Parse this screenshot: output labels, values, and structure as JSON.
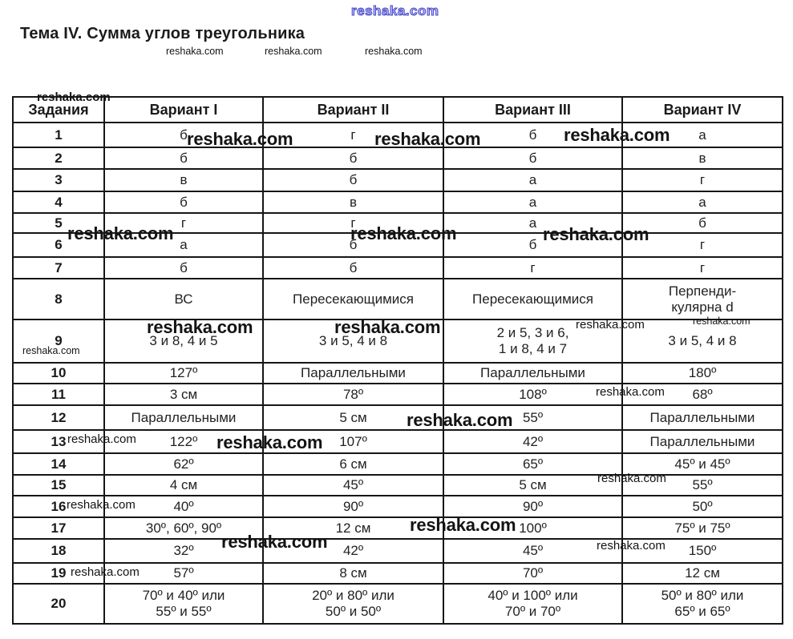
{
  "page": {
    "title": "Тема IV. Сумма углов треугольника",
    "watermark": "reshaka.com"
  },
  "table": {
    "headers": [
      "Задания",
      "Вариант I",
      "Вариант II",
      "Вариант III",
      "Вариант IV"
    ],
    "rows": [
      {
        "task": "1",
        "v1": "б",
        "v2": "г",
        "v3": "б",
        "v4": "а"
      },
      {
        "task": "2",
        "v1": "б",
        "v2": "б",
        "v3": "б",
        "v4": "в"
      },
      {
        "task": "3",
        "v1": "в",
        "v2": "б",
        "v3": "а",
        "v4": "г"
      },
      {
        "task": "4",
        "v1": "б",
        "v2": "в",
        "v3": "а",
        "v4": "а"
      },
      {
        "task": "5",
        "v1": "г",
        "v2": "г",
        "v3": "а",
        "v4": "б"
      },
      {
        "task": "6",
        "v1": "а",
        "v2": "б",
        "v3": "б",
        "v4": "г"
      },
      {
        "task": "7",
        "v1": "б",
        "v2": "б",
        "v3": "г",
        "v4": "г"
      },
      {
        "task": "8",
        "v1": "ВС",
        "v2": "Пересекающимися",
        "v3": "Пересекающимися",
        "v4": "Перпенди-\nкулярна d"
      },
      {
        "task": "9",
        "v1": "3 и 8, 4 и 5",
        "v2": "3 и 5, 4 и 8",
        "v3": "2 и 5, 3 и 6,\n1 и 8, 4 и 7",
        "v4": "3 и 5, 4 и 8"
      },
      {
        "task": "10",
        "v1": "127º",
        "v2": "Параллельными",
        "v3": "Параллельными",
        "v4": "180º"
      },
      {
        "task": "11",
        "v1": "3 см",
        "v2": "78º",
        "v3": "108º",
        "v4": "68º"
      },
      {
        "task": "12",
        "v1": "Параллельными",
        "v2": "5 см",
        "v3": "55º",
        "v4": "Параллельными"
      },
      {
        "task": "13",
        "v1": "122º",
        "v2": "107º",
        "v3": "42º",
        "v4": "Параллельными"
      },
      {
        "task": "14",
        "v1": "62º",
        "v2": "6 см",
        "v3": "65º",
        "v4": "45º и 45º"
      },
      {
        "task": "15",
        "v1": "4 см",
        "v2": "45º",
        "v3": "5 см",
        "v4": "55º"
      },
      {
        "task": "16",
        "v1": "40º",
        "v2": "90º",
        "v3": "90º",
        "v4": "50º"
      },
      {
        "task": "17",
        "v1": "30º, 60º, 90º",
        "v2": "12 см",
        "v3": "100º",
        "v4": "75º и 75º"
      },
      {
        "task": "18",
        "v1": "32º",
        "v2": "42º",
        "v3": "45º",
        "v4": "150º"
      },
      {
        "task": "19",
        "v1": "57º",
        "v2": "8 см",
        "v3": "70º",
        "v4": "12 см"
      },
      {
        "task": "20",
        "v1": "70º и 40º или\n55º и 55º",
        "v2": "20º и 80º или\n50º и 50º",
        "v3": "40º и 100º или\n70º и 70º",
        "v4": "50º и 80º или\n65º и 65º"
      }
    ]
  }
}
